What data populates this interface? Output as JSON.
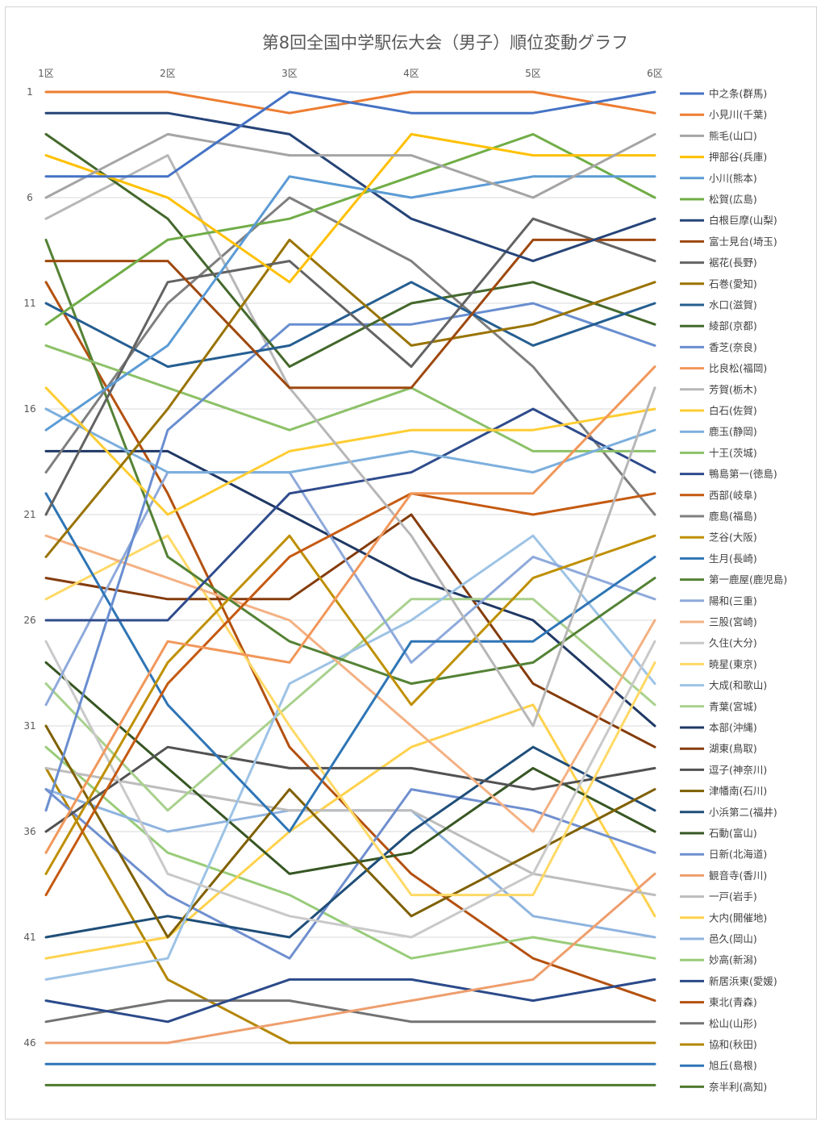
{
  "chart_data": {
    "type": "line",
    "title": "第8回全国中学駅伝大会（男子）順位変動グラフ",
    "categories": [
      "1区",
      "2区",
      "3区",
      "4区",
      "5区",
      "6区"
    ],
    "y_ticks": [
      "1",
      "6",
      "11",
      "16",
      "21",
      "26",
      "31",
      "36",
      "41",
      "46"
    ],
    "y_reversed": true,
    "ylim": [
      1,
      48
    ],
    "grid": true,
    "legend_position": "right",
    "series": [
      {
        "name": "中之条(群馬)",
        "color": "#4472C4",
        "values": [
          5,
          5,
          1,
          2,
          2,
          1
        ]
      },
      {
        "name": "小見川(千葉)",
        "color": "#ED7D31",
        "values": [
          1,
          1,
          2,
          1,
          1,
          2
        ]
      },
      {
        "name": "熊毛(山口)",
        "color": "#A5A5A5",
        "values": [
          6,
          3,
          4,
          4,
          6,
          3
        ]
      },
      {
        "name": "押部谷(兵庫)",
        "color": "#FFC000",
        "values": [
          4,
          6,
          10,
          3,
          4,
          4
        ]
      },
      {
        "name": "小川(熊本)",
        "color": "#5B9BD5",
        "values": [
          17,
          13,
          5,
          6,
          5,
          5
        ]
      },
      {
        "name": "松賀(広島)",
        "color": "#70AD47",
        "values": [
          12,
          8,
          7,
          5,
          3,
          6
        ]
      },
      {
        "name": "白根巨摩(山梨)",
        "color": "#264478",
        "values": [
          2,
          2,
          3,
          7,
          9,
          7
        ]
      },
      {
        "name": "富士見台(埼玉)",
        "color": "#9E480E",
        "values": [
          9,
          9,
          15,
          15,
          8,
          8
        ]
      },
      {
        "name": "裾花(長野)",
        "color": "#636363",
        "values": [
          21,
          10,
          9,
          14,
          7,
          9
        ]
      },
      {
        "name": "石巻(愛知)",
        "color": "#997300",
        "values": [
          23,
          16,
          8,
          13,
          12,
          10
        ]
      },
      {
        "name": "水口(滋賀)",
        "color": "#255E91",
        "values": [
          11,
          14,
          13,
          10,
          13,
          11
        ]
      },
      {
        "name": "綾部(京都)",
        "color": "#43682B",
        "values": [
          3,
          7,
          14,
          11,
          10,
          12
        ]
      },
      {
        "name": "香芝(奈良)",
        "color": "#698ED0",
        "values": [
          35,
          17,
          12,
          12,
          11,
          13
        ]
      },
      {
        "name": "比良松(福岡)",
        "color": "#F1975A",
        "values": [
          37,
          27,
          28,
          20,
          20,
          14
        ]
      },
      {
        "name": "芳賀(栃木)",
        "color": "#B7B7B7",
        "values": [
          7,
          4,
          15,
          22,
          31,
          15
        ]
      },
      {
        "name": "白石(佐賀)",
        "color": "#FFCD33",
        "values": [
          15,
          21,
          18,
          17,
          17,
          16
        ]
      },
      {
        "name": "鹿玉(静岡)",
        "color": "#7CAFDD",
        "values": [
          16,
          19,
          19,
          18,
          19,
          17
        ]
      },
      {
        "name": "十王(茨城)",
        "color": "#8CC168",
        "values": [
          13,
          15,
          17,
          15,
          18,
          18
        ]
      },
      {
        "name": "鴨島第一(徳島)",
        "color": "#2F4B8C",
        "values": [
          26,
          26,
          20,
          19,
          16,
          19
        ]
      },
      {
        "name": "西部(岐阜)",
        "color": "#C55A11",
        "values": [
          39,
          29,
          23,
          20,
          21,
          20
        ]
      },
      {
        "name": "鹿島(福島)",
        "color": "#7F7F7F",
        "values": [
          19,
          11,
          6,
          9,
          14,
          21
        ]
      },
      {
        "name": "芝谷(大阪)",
        "color": "#BF9000",
        "values": [
          38,
          28,
          22,
          30,
          24,
          22
        ]
      },
      {
        "name": "生月(長崎)",
        "color": "#2E75B6",
        "values": [
          20,
          30,
          36,
          27,
          27,
          23
        ]
      },
      {
        "name": "第一鹿屋(鹿児島)",
        "color": "#548235",
        "values": [
          8,
          23,
          27,
          29,
          28,
          24
        ]
      },
      {
        "name": "陽和(三重)",
        "color": "#8EA9DB",
        "values": [
          30,
          19,
          19,
          28,
          23,
          25
        ]
      },
      {
        "name": "三股(宮崎)",
        "color": "#F4B183",
        "values": [
          22,
          24,
          26,
          31,
          36,
          26
        ]
      },
      {
        "name": "久住(大分)",
        "color": "#C9C9C9",
        "values": [
          27,
          38,
          40,
          41,
          38,
          27
        ]
      },
      {
        "name": "暁星(東京)",
        "color": "#FFD966",
        "values": [
          25,
          22,
          31,
          39,
          39,
          28
        ]
      },
      {
        "name": "大成(和歌山)",
        "color": "#9DC3E6",
        "values": [
          43,
          42,
          29,
          26,
          22,
          29
        ]
      },
      {
        "name": "青葉(宮城)",
        "color": "#A9D18E",
        "values": [
          29,
          35,
          30,
          25,
          25,
          30
        ]
      },
      {
        "name": "本部(沖縄)",
        "color": "#1F3864",
        "values": [
          18,
          18,
          21,
          24,
          26,
          31
        ]
      },
      {
        "name": "湖東(鳥取)",
        "color": "#843C0C",
        "values": [
          24,
          25,
          25,
          21,
          29,
          32
        ]
      },
      {
        "name": "逗子(神奈川)",
        "color": "#525252",
        "values": [
          36,
          32,
          33,
          33,
          34,
          33
        ]
      },
      {
        "name": "津幡南(石川)",
        "color": "#7F6000",
        "values": [
          31,
          41,
          34,
          40,
          37,
          34
        ]
      },
      {
        "name": "小浜第二(福井)",
        "color": "#1F4E79",
        "values": [
          41,
          40,
          41,
          36,
          32,
          35
        ]
      },
      {
        "name": "石動(富山)",
        "color": "#375623",
        "values": [
          28,
          33,
          38,
          37,
          33,
          36
        ]
      },
      {
        "name": "日新(北海道)",
        "color": "#6F8FCF",
        "values": [
          34,
          39,
          42,
          34,
          35,
          37
        ]
      },
      {
        "name": "観音寺(香川)",
        "color": "#EE9E6D",
        "values": [
          46,
          46,
          45,
          44,
          43,
          38
        ]
      },
      {
        "name": "一戸(岩手)",
        "color": "#BDBDBD",
        "values": [
          33,
          34,
          35,
          35,
          38,
          39
        ]
      },
      {
        "name": "大内(開催地)",
        "color": "#FFD24D",
        "values": [
          42,
          41,
          36,
          32,
          30,
          40
        ]
      },
      {
        "name": "邑久(岡山)",
        "color": "#8FB4DF",
        "values": [
          34,
          36,
          35,
          35,
          40,
          41
        ]
      },
      {
        "name": "妙高(新潟)",
        "color": "#99CC7A",
        "values": [
          32,
          37,
          39,
          42,
          41,
          42
        ]
      },
      {
        "name": "新居浜東(愛媛)",
        "color": "#2B4A8A",
        "values": [
          44,
          45,
          43,
          43,
          44,
          43
        ]
      },
      {
        "name": "東北(青森)",
        "color": "#B4510F",
        "values": [
          10,
          20,
          32,
          38,
          42,
          44
        ]
      },
      {
        "name": "松山(山形)",
        "color": "#737373",
        "values": [
          45,
          44,
          44,
          45,
          45,
          45
        ]
      },
      {
        "name": "協和(秋田)",
        "color": "#B38600",
        "values": [
          33,
          43,
          46,
          46,
          46,
          46
        ]
      },
      {
        "name": "旭丘(島根)",
        "color": "#2E75B6",
        "values": [
          47,
          47,
          47,
          47,
          47,
          47
        ]
      },
      {
        "name": "奈半利(高知)",
        "color": "#4E7A2E",
        "values": [
          48,
          48,
          48,
          48,
          48,
          48
        ]
      }
    ]
  }
}
